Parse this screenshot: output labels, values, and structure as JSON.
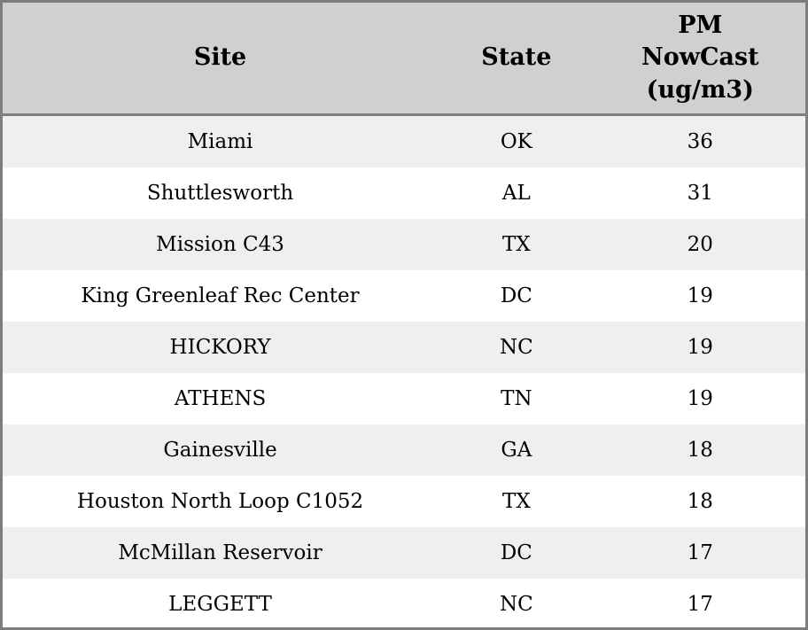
{
  "table": {
    "columns": [
      {
        "label": "Site"
      },
      {
        "label": "State"
      },
      {
        "label_lines": [
          "PM",
          "NowCast",
          "(ug/m3)"
        ]
      }
    ],
    "rows": [
      {
        "site": "Miami",
        "state": "OK",
        "pm_nowcast": "36"
      },
      {
        "site": "Shuttlesworth",
        "state": "AL",
        "pm_nowcast": "31"
      },
      {
        "site": "Mission C43",
        "state": "TX",
        "pm_nowcast": "20"
      },
      {
        "site": "King Greenleaf Rec Center",
        "state": "DC",
        "pm_nowcast": "19"
      },
      {
        "site": "HICKORY",
        "state": "NC",
        "pm_nowcast": "19"
      },
      {
        "site": "ATHENS",
        "state": "TN",
        "pm_nowcast": "19"
      },
      {
        "site": "Gainesville",
        "state": "GA",
        "pm_nowcast": "18"
      },
      {
        "site": "Houston North Loop C1052",
        "state": "TX",
        "pm_nowcast": "18"
      },
      {
        "site": "McMillan Reservoir",
        "state": "DC",
        "pm_nowcast": "17"
      },
      {
        "site": "LEGGETT",
        "state": "NC",
        "pm_nowcast": "17"
      }
    ]
  },
  "colors": {
    "border": "#7d7d7d",
    "header_bg": "#d0d0d0",
    "row_odd_bg": "#efefef",
    "row_even_bg": "#ffffff",
    "text": "#000000"
  }
}
